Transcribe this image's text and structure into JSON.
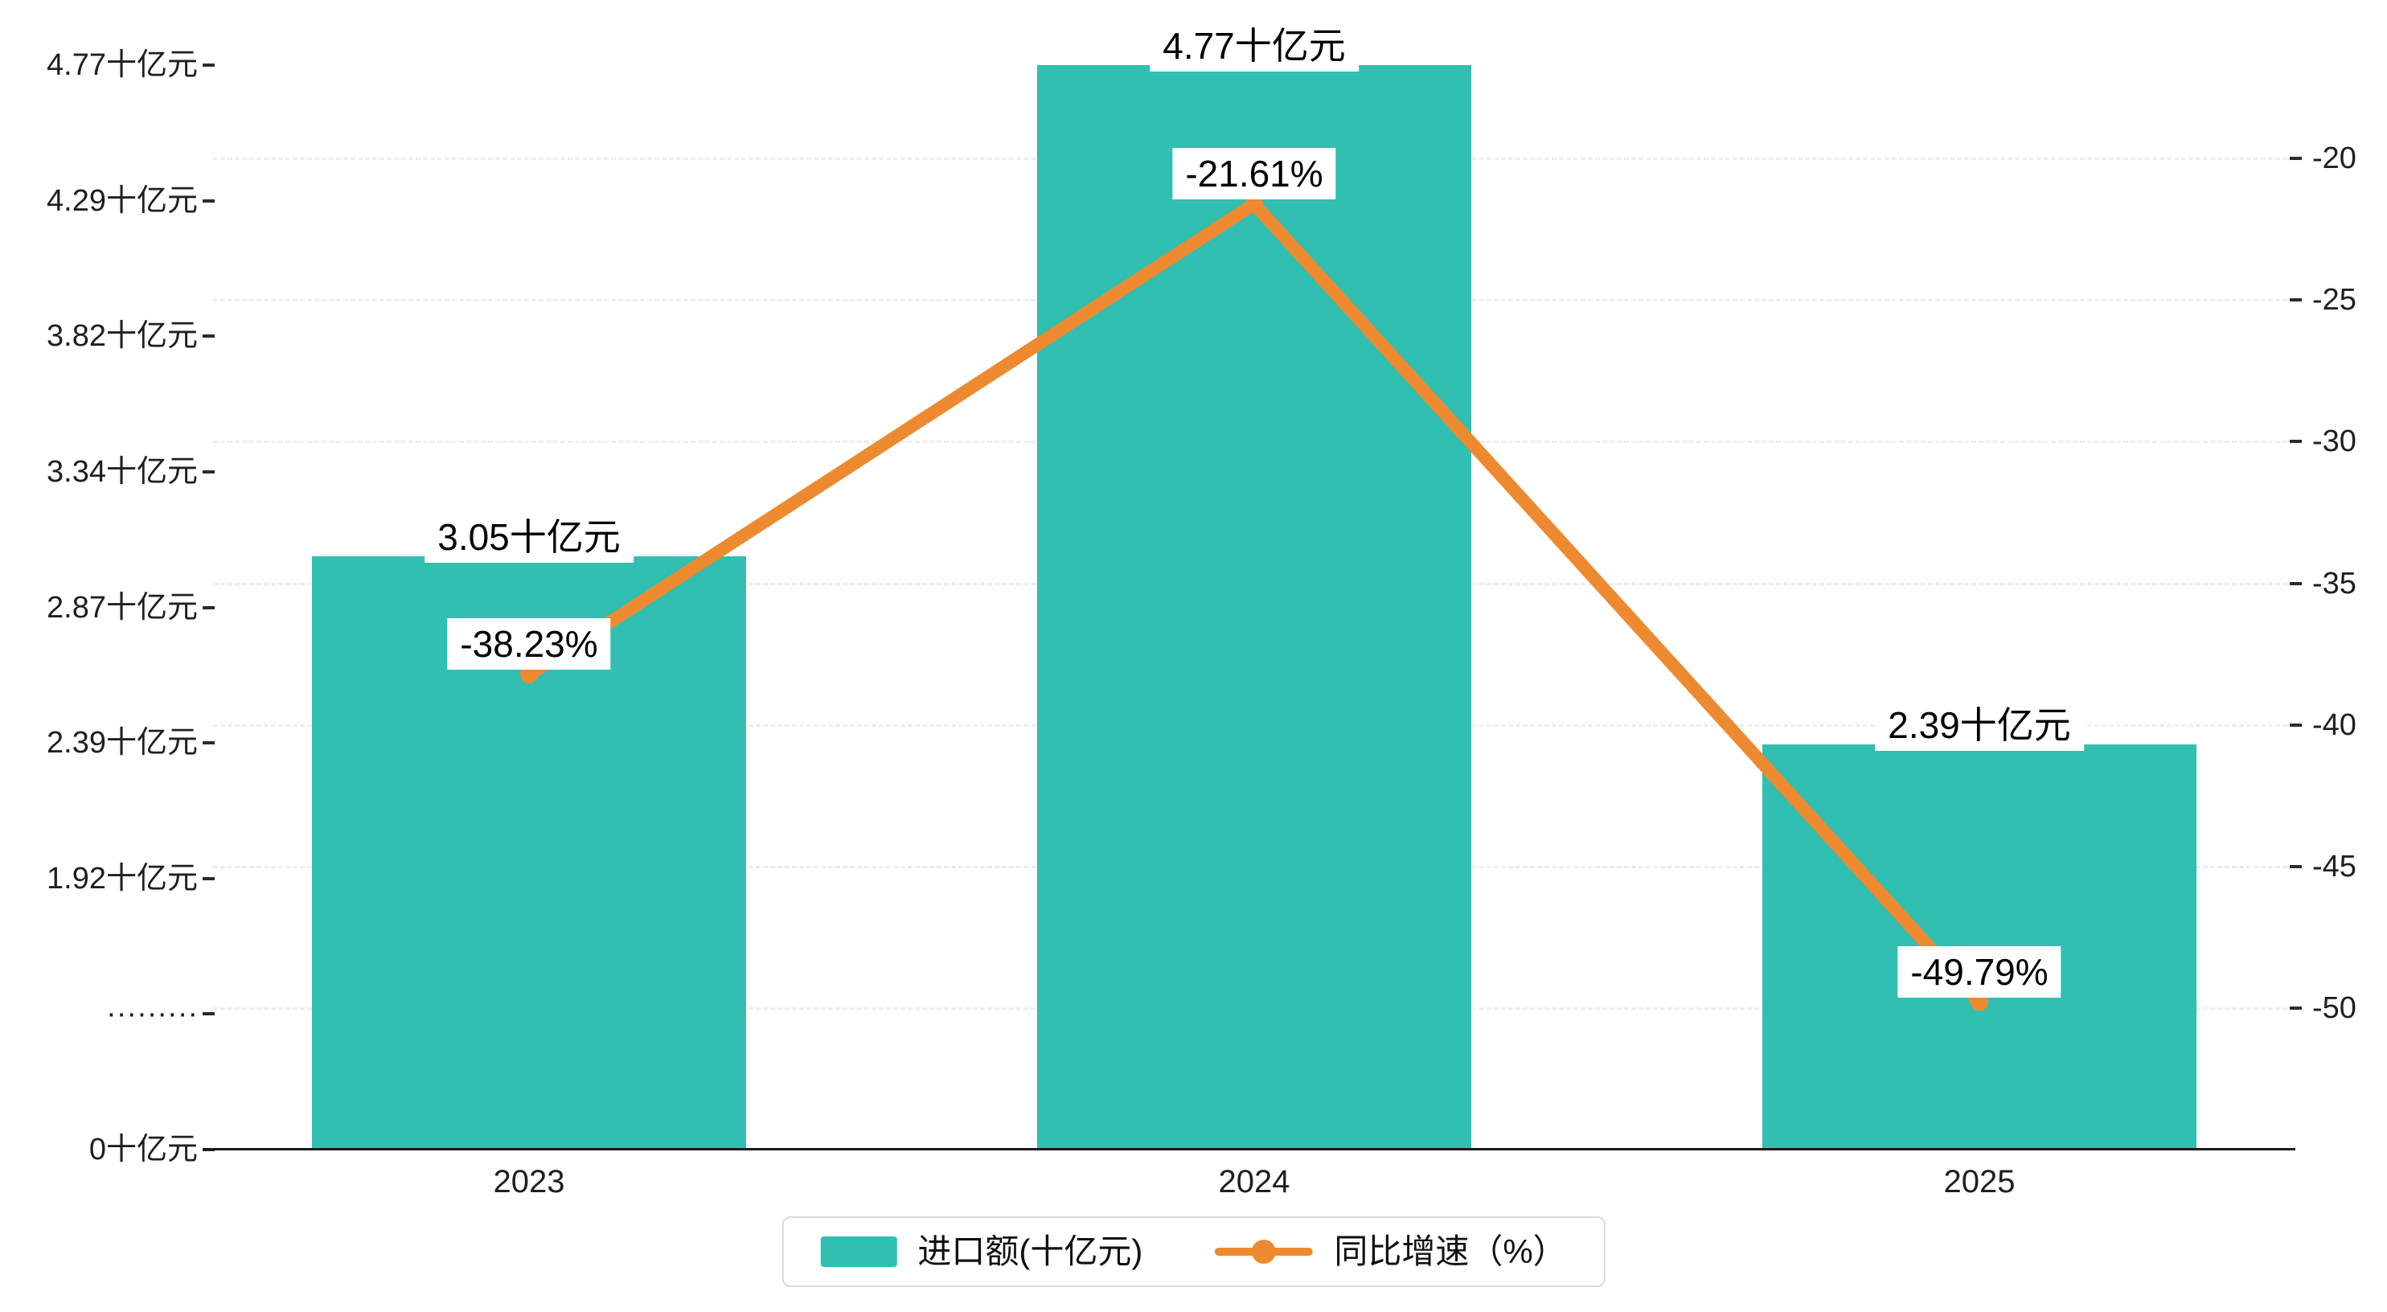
{
  "chart_data": {
    "type": "bar",
    "categories": [
      "2023",
      "2024",
      "2025"
    ],
    "series": [
      {
        "name": "进口额(十亿元)",
        "type": "bar",
        "axis": "left",
        "color": "#30bfb0",
        "values": [
          3.05,
          4.77,
          2.39
        ],
        "value_labels": [
          "3.05十亿元",
          "4.77十亿元",
          "2.39十亿元"
        ]
      },
      {
        "name": "同比增速（%）",
        "type": "line",
        "axis": "right",
        "color": "#ed8a30",
        "values": [
          -38.23,
          -21.61,
          -49.79
        ],
        "value_labels": [
          "-38.23%",
          "-21.61%",
          "-49.79%"
        ]
      }
    ],
    "left_axis": {
      "unit": "十亿元",
      "tick_labels": [
        "4.77十亿元",
        "4.29十亿元",
        "3.82十亿元",
        "3.34十亿元",
        "2.87十亿元",
        "2.39十亿元",
        "1.92十亿元",
        "·········",
        "0十亿元"
      ]
    },
    "right_axis": {
      "unit": "%",
      "tick_labels": [
        "-20",
        "-25",
        "-30",
        "-35",
        "-40",
        "-45",
        "-50"
      ],
      "min": -50,
      "max": -20
    },
    "legend": {
      "position": "bottom-center",
      "items": [
        {
          "label": "进口额(十亿元)",
          "marker": "bar-swatch",
          "color": "#30bfb0"
        },
        {
          "label": "同比增速（%）",
          "marker": "line-dot",
          "color": "#ed8a30"
        }
      ]
    },
    "grid": {
      "horizontal_dashed": true
    }
  }
}
